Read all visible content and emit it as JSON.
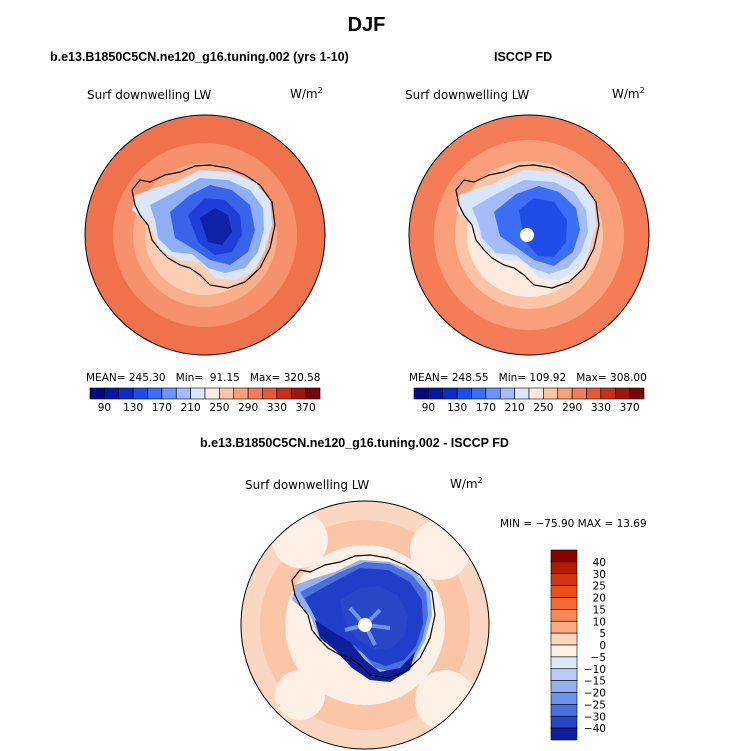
{
  "main_title": "DJF",
  "panels": [
    {
      "title": "b.e13.B1850C5CN.ne120_g16.tuning.002 (yrs 1-10)",
      "variable": "Surf downwelling LW",
      "units": "W/m",
      "units_exp": "2",
      "mean": "245.30",
      "min": "91.15",
      "max": "320.58",
      "mean_label": "MEAN=",
      "min_label": "Min=",
      "max_label": "Max="
    },
    {
      "title": "ISCCP FD",
      "variable": "Surf downwelling LW",
      "units": "W/m",
      "units_exp": "2",
      "mean": "248.55",
      "min": "109.92",
      "max": "308.00",
      "mean_label": "MEAN=",
      "min_label": "Min=",
      "max_label": "Max="
    }
  ],
  "diff_panel": {
    "title": "b.e13.B1850C5CN.ne120_g16.tuning.002 - ISCCP FD",
    "variable": "Surf downwelling LW",
    "units": "W/m",
    "units_exp": "2",
    "minmax_text": "MIN = −75.90 MAX =  13.69"
  },
  "chart_data": [
    {
      "type": "heatmap",
      "title": "b.e13.B1850C5CN.ne120_g16.tuning.002 (yrs 1-10)",
      "variable": "Surf downwelling LW",
      "units": "W/m2",
      "projection": "south polar stereographic",
      "colorbar": {
        "levels": [
          90,
          110,
          130,
          150,
          170,
          190,
          210,
          230,
          250,
          270,
          290,
          310,
          330,
          350,
          370
        ],
        "tick_labels": [
          "90",
          "130",
          "170",
          "210",
          "250",
          "290",
          "330",
          "370"
        ],
        "colors": [
          "#000a80",
          "#001aa6",
          "#0a2dc8",
          "#1f4ee6",
          "#3b6ef5",
          "#6a94f8",
          "#a4bdfa",
          "#d9e6fd",
          "#fdebe0",
          "#fcc5a6",
          "#f9a07a",
          "#f47c56",
          "#e55a35",
          "#c5321a",
          "#a11708",
          "#7a0403"
        ],
        "placement": "bottom"
      },
      "stats": {
        "mean": 245.3,
        "min": 91.15,
        "max": 320.58
      }
    },
    {
      "type": "heatmap",
      "title": "ISCCP FD",
      "variable": "Surf downwelling LW",
      "units": "W/m2",
      "projection": "south polar stereographic",
      "colorbar": {
        "levels": [
          90,
          110,
          130,
          150,
          170,
          190,
          210,
          230,
          250,
          270,
          290,
          310,
          330,
          350,
          370
        ],
        "tick_labels": [
          "90",
          "130",
          "170",
          "210",
          "250",
          "290",
          "330",
          "370"
        ],
        "colors": [
          "#000a80",
          "#001aa6",
          "#0a2dc8",
          "#1f4ee6",
          "#3b6ef5",
          "#6a94f8",
          "#a4bdfa",
          "#d9e6fd",
          "#fdebe0",
          "#fcc5a6",
          "#f9a07a",
          "#f47c56",
          "#e55a35",
          "#c5321a",
          "#a11708",
          "#7a0403"
        ],
        "placement": "bottom"
      },
      "stats": {
        "mean": 248.55,
        "min": 109.92,
        "max": 308.0
      }
    },
    {
      "type": "heatmap",
      "title": "b.e13.B1850C5CN.ne120_g16.tuning.002 - ISCCP FD",
      "variable": "Surf downwelling LW",
      "units": "W/m2",
      "projection": "south polar stereographic",
      "colorbar": {
        "levels": [
          -40,
          -30,
          -25,
          -20,
          -15,
          -10,
          -5,
          0,
          5,
          10,
          15,
          20,
          25,
          30,
          40
        ],
        "tick_labels": [
          "40",
          "30",
          "25",
          "20",
          "15",
          "10",
          "5",
          "0",
          "−5",
          "−10",
          "−15",
          "−20",
          "−25",
          "−30",
          "−40"
        ],
        "colors": [
          "#8b0000",
          "#b01a06",
          "#d43510",
          "#ea4f1c",
          "#f46a34",
          "#f98955",
          "#fbab82",
          "#fdd4bc",
          "#fff0e6",
          "#dde9fb",
          "#b8cdf7",
          "#93b1f2",
          "#6f93ec",
          "#4a70e0",
          "#2747c6",
          "#0d1f9a"
        ],
        "placement": "right"
      },
      "stats": {
        "min": -75.9,
        "max": 13.69
      }
    }
  ]
}
